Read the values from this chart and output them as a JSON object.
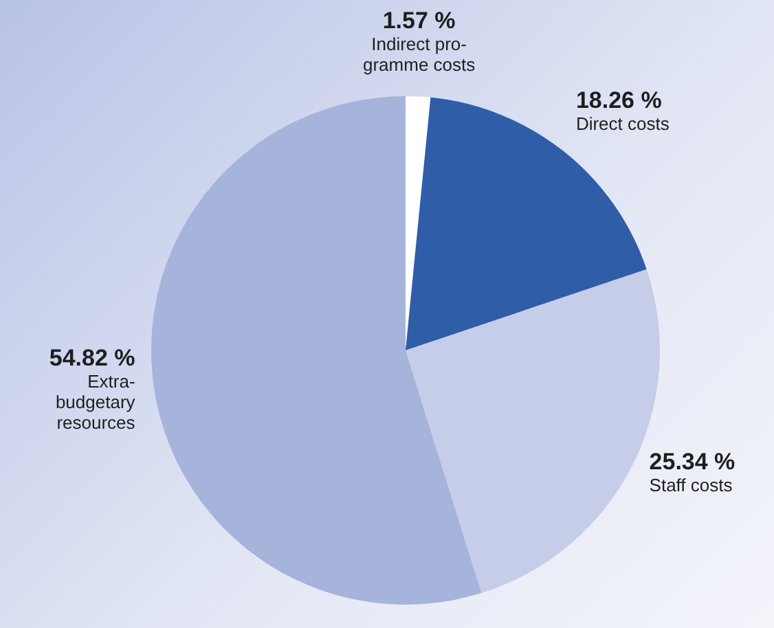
{
  "chart_data": {
    "type": "pie",
    "categories": [
      "Indirect pro-\ngramme costs",
      "Direct costs",
      "Staff costs",
      "Extra-\nbudgetary\nresources"
    ],
    "values": [
      1.57,
      18.26,
      25.34,
      54.82
    ],
    "value_labels": [
      "1.57 %",
      "18.26 %",
      "25.34 %",
      "54.82 %"
    ],
    "colors": [
      "#ffffff",
      "#2f5da8",
      "#c6cde9",
      "#a6b3db"
    ],
    "legend": false
  }
}
